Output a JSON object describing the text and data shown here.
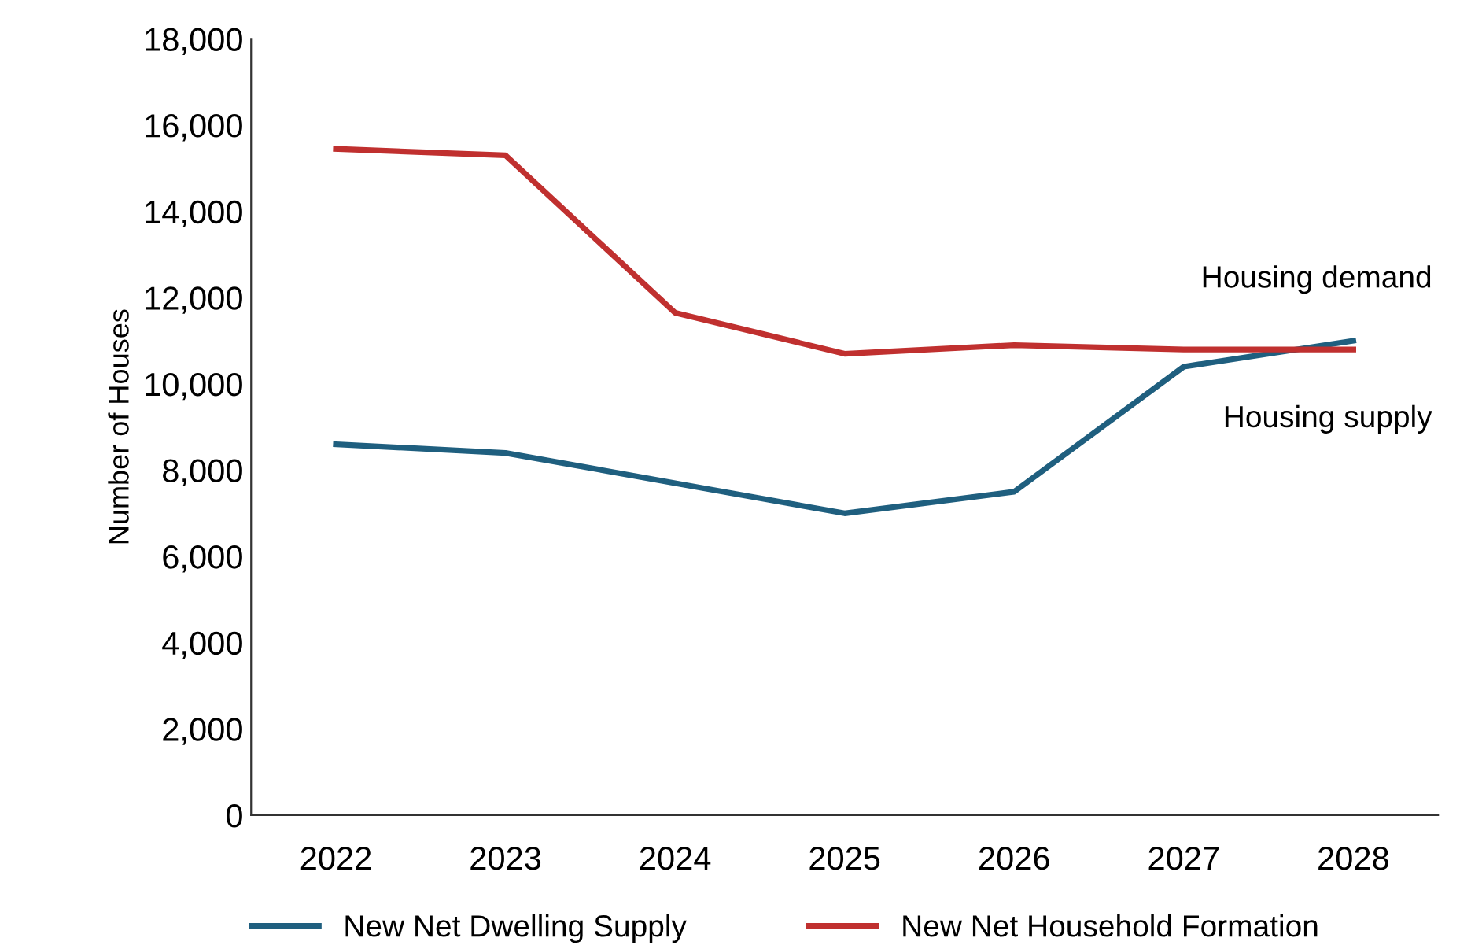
{
  "chart_data": {
    "type": "line",
    "ylabel": "Number of Houses",
    "categories": [
      "2022",
      "2023",
      "2024",
      "2025",
      "2026",
      "2027",
      "2028"
    ],
    "series": [
      {
        "name": "New Net Dwelling Supply",
        "color": "#1f5f7f",
        "values": [
          8600,
          8400,
          7700,
          7000,
          7500,
          10400,
          11000
        ]
      },
      {
        "name": "New Net Household Formation",
        "color": "#c0302f",
        "values": [
          15450,
          15300,
          11650,
          10700,
          10900,
          10800,
          10800
        ]
      }
    ],
    "ylim": [
      0,
      18000
    ],
    "yticks": [
      {
        "value": 0,
        "label": "0"
      },
      {
        "value": 2000,
        "label": "2,000"
      },
      {
        "value": 4000,
        "label": "4,000"
      },
      {
        "value": 6000,
        "label": "6,000"
      },
      {
        "value": 8000,
        "label": "8,000"
      },
      {
        "value": 10000,
        "label": "10,000"
      },
      {
        "value": 12000,
        "label": "12,000"
      },
      {
        "value": 14000,
        "label": "14,000"
      },
      {
        "value": 16000,
        "label": "16,000"
      },
      {
        "value": 18000,
        "label": "18,000"
      }
    ],
    "annotations": [
      "Housing demand",
      "Housing supply"
    ],
    "legend": "bottom",
    "grid": false,
    "marker": "none",
    "line_style": "solid"
  }
}
